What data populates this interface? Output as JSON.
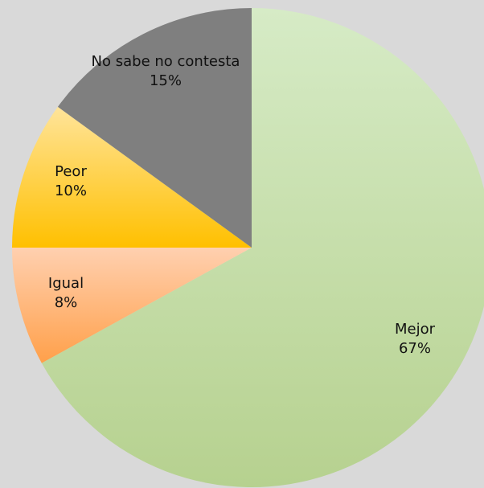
{
  "chart_data": {
    "type": "pie",
    "title": "",
    "slices": [
      {
        "label": "Mejor",
        "value": 67,
        "percent_label": "67%",
        "color": "#b6d18f",
        "color_light": "#d6ebc6"
      },
      {
        "label": "Igual",
        "value": 8,
        "percent_label": "8%",
        "color": "#ffa04a",
        "color_light": "#ffd0b0"
      },
      {
        "label": "Peor",
        "value": 10,
        "percent_label": "10%",
        "color": "#ffc000",
        "color_light": "#ffe49a"
      },
      {
        "label": "No sabe no contesta",
        "value": 15,
        "percent_label": "15%",
        "color": "#7f7f7f",
        "color_light": "#7f7f7f"
      }
    ],
    "start_angle": "12 o'clock",
    "direction": "clockwise",
    "legend": "none",
    "data_labels": "inside, category and percent"
  }
}
